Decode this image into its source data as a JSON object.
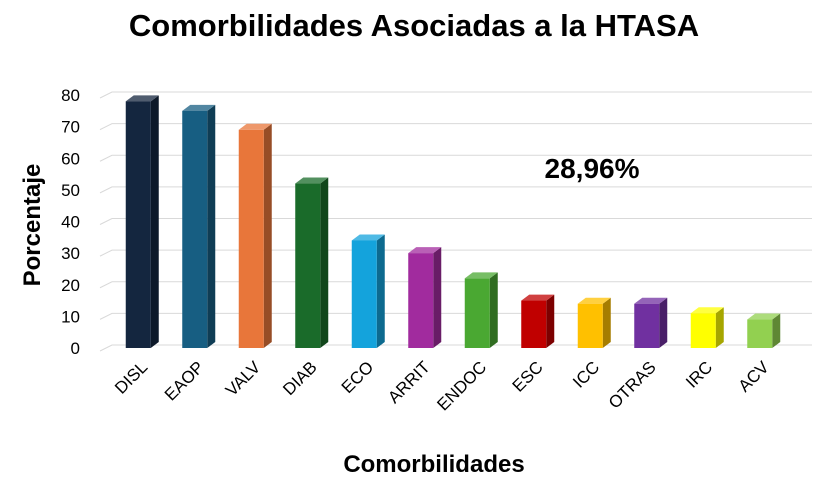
{
  "chart_data": {
    "type": "bar",
    "title": "Comorbilidades Asociadas a la HTASA",
    "xlabel": "Comorbilidades",
    "ylabel": "Porcentaje",
    "categories": [
      "DISL",
      "EAOP",
      "VALV",
      "DIAB",
      "ECO",
      "ARRIT",
      "ENDOC",
      "ESC",
      "ICC",
      "OTRAS",
      "IRC",
      "ACV"
    ],
    "values": [
      78,
      75,
      69,
      52,
      34,
      30,
      22,
      15,
      14,
      14,
      11,
      9
    ],
    "colors": [
      "#14263f",
      "#175e82",
      "#e8763a",
      "#1a6b2a",
      "#14a3dc",
      "#a12b9e",
      "#4aa832",
      "#c00000",
      "#ffc000",
      "#7030a0",
      "#ffff00",
      "#92d050"
    ],
    "ylim": [
      0,
      80
    ],
    "yticks": [
      0,
      10,
      20,
      30,
      40,
      50,
      60,
      70,
      80
    ],
    "grid": true,
    "annotation": "28,96%"
  }
}
